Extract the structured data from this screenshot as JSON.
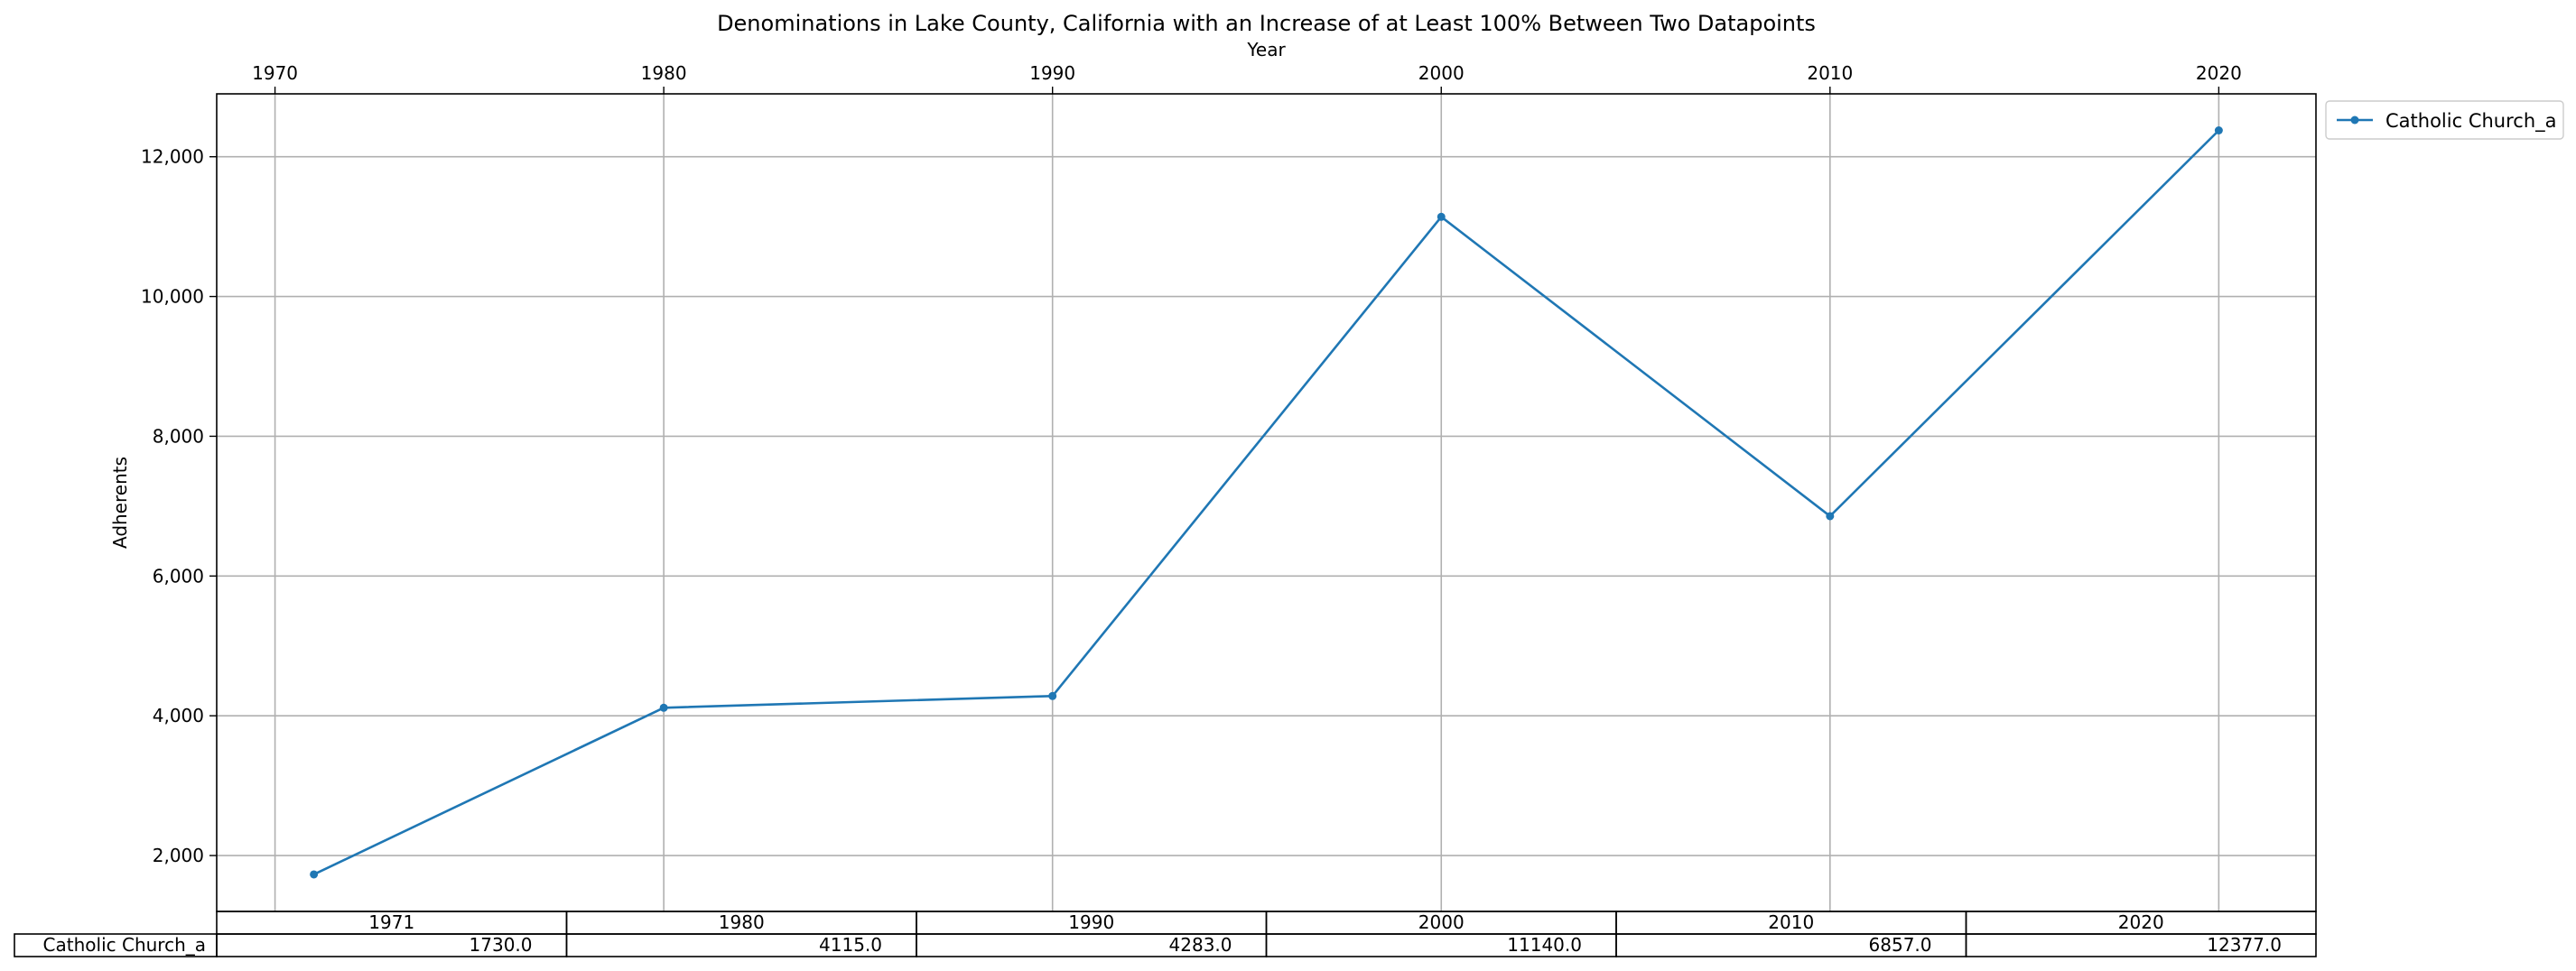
{
  "chart_data": {
    "type": "line",
    "title": "Denominations in Lake County, California with an Increase of at Least 100% Between Two Datapoints",
    "xlabel": "Year",
    "ylabel": "Adherents",
    "x_axis_position": "top",
    "x_ticks": [
      1970,
      1980,
      1990,
      2000,
      2010,
      2020
    ],
    "x_tick_labels": [
      "1970",
      "1980",
      "1990",
      "2000",
      "2010",
      "2020"
    ],
    "y_ticks": [
      2000,
      4000,
      6000,
      8000,
      10000,
      12000
    ],
    "y_tick_labels": [
      "2,000",
      "4,000",
      "6,000",
      "8,000",
      "10,000",
      "12,000"
    ],
    "xlim": [
      1968.5,
      2022.5
    ],
    "ylim": [
      1200,
      12900
    ],
    "grid": true,
    "legend": "outside top-right",
    "line_color": "#1f77b4",
    "series": [
      {
        "name": "Catholic Church_a",
        "x": [
          1971,
          1980,
          1990,
          2000,
          2010,
          2020
        ],
        "values": [
          1730,
          4115,
          4283,
          11140,
          6857,
          12377
        ]
      }
    ],
    "table": {
      "columns": [
        "1971",
        "1980",
        "1990",
        "2000",
        "2010",
        "2020"
      ],
      "rows": [
        {
          "label": "Catholic Church_a",
          "cells": [
            "1730.0",
            "4115.0",
            "4283.0",
            "11140.0",
            "6857.0",
            "12377.0"
          ]
        }
      ]
    }
  }
}
